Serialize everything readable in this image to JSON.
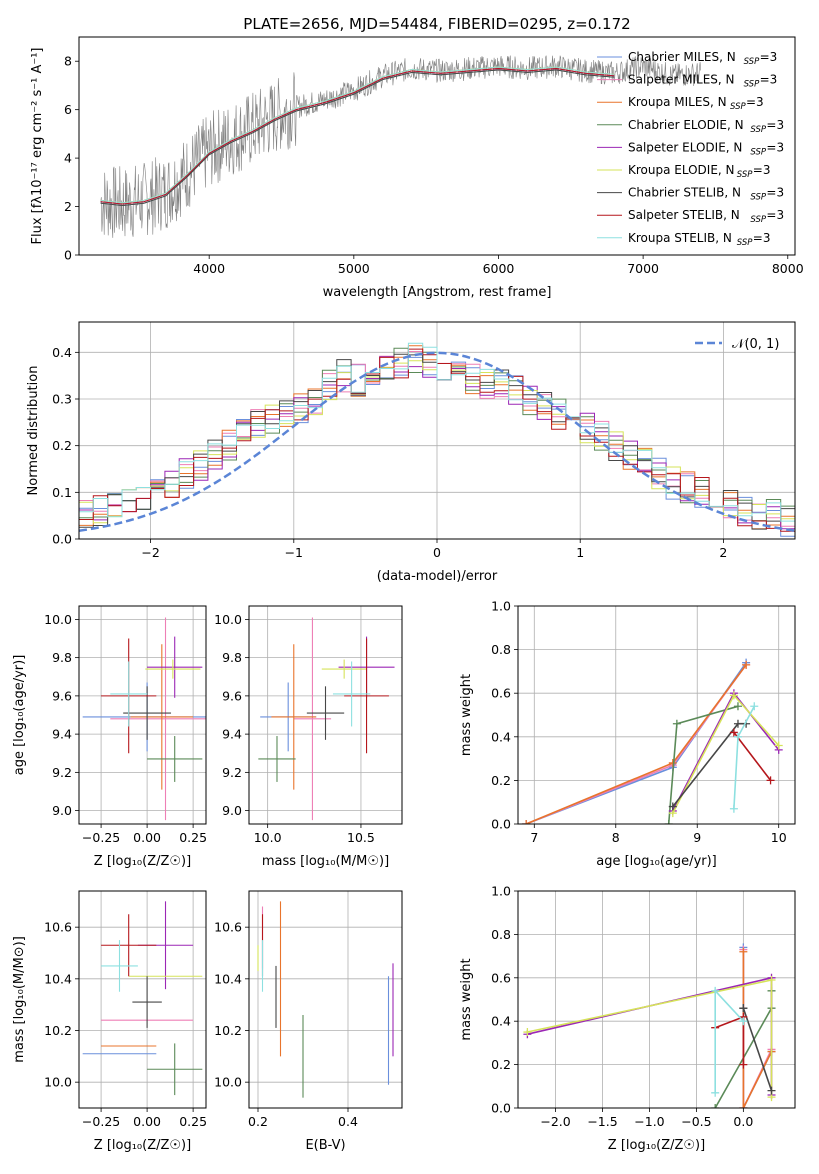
{
  "colors": {
    "Chabrier MILES": "#6a8fdc",
    "Salpeter MILES": "#ee7fb5",
    "Kroupa MILES": "#e8742c",
    "Chabrier ELODIE": "#5b8a58",
    "Salpeter ELODIE": "#9b27b5",
    "Kroupa ELODIE": "#d6e35a",
    "Chabrier STELIB": "#474747",
    "Salpeter STELIB": "#b5171c",
    "Kroupa STELIB": "#8de0e0",
    "data": "#7f7f7f",
    "normal": "#5b85d6"
  },
  "chart_data": [
    {
      "id": "spectrum",
      "type": "line",
      "title": "PLATE=2656, MJD=54484, FIBERID=0295, z=0.172",
      "xlabel": "wavelength [Angstrom, rest frame]",
      "ylabel": "Flux [f_λ 10^-17 erg cm^-2 s^-1 A^-1]",
      "xlim": [
        3100,
        8050
      ],
      "ylim": [
        0,
        9
      ],
      "xticks": [
        4000,
        5000,
        6000,
        7000,
        8000
      ],
      "yticks": [
        0,
        2,
        4,
        6,
        8
      ],
      "legend_position": "top-right",
      "legend": [
        "Chabrier MILES, N_SSP=3",
        "Salpeter MILES, N_SSP=3",
        "Kroupa MILES, N_SSP=3",
        "Chabrier ELODIE, N_SSP=3",
        "Salpeter ELODIE, N_SSP=3",
        "Kroupa ELODIE, N_SSP=3",
        "Chabrier STELIB, N_SSP=3",
        "Salpeter STELIB, N_SSP=3",
        "Kroupa STELIB, N_SSP=3"
      ],
      "data_envelope": {
        "x": [
          3250,
          3400,
          3550,
          3700,
          3850,
          4000,
          4150,
          4300,
          4450,
          4600,
          4800,
          5000,
          5200,
          5400,
          5600,
          5800,
          6000,
          6200,
          6400,
          6600,
          6800,
          7000,
          7200,
          7400
        ],
        "y": [
          2.2,
          2.1,
          2.3,
          2.6,
          3.4,
          4.3,
          4.8,
          5.2,
          5.7,
          6.1,
          6.4,
          6.8,
          7.4,
          7.7,
          7.6,
          7.7,
          7.8,
          7.7,
          7.8,
          7.6,
          7.5,
          7.8,
          7.4,
          7.5
        ]
      },
      "model_envelope": {
        "x": [
          3250,
          3400,
          3550,
          3700,
          3850,
          4000,
          4150,
          4300,
          4450,
          4600,
          4800,
          5000,
          5200,
          5400,
          5600,
          5800,
          6000,
          6200,
          6400,
          6600,
          6800
        ],
        "y": [
          2.2,
          2.1,
          2.2,
          2.5,
          3.3,
          4.2,
          4.7,
          5.1,
          5.6,
          6.0,
          6.3,
          6.7,
          7.3,
          7.6,
          7.5,
          7.6,
          7.7,
          7.6,
          7.7,
          7.5,
          7.4
        ]
      }
    },
    {
      "id": "residuals",
      "type": "histogram",
      "xlabel": "(data-model)/error",
      "ylabel": "Normed distribution",
      "xlim": [
        -2.5,
        2.5
      ],
      "ylim": [
        0,
        0.465
      ],
      "xticks": [
        -2,
        -1,
        0,
        1,
        2
      ],
      "yticks": [
        0.0,
        0.1,
        0.2,
        0.3,
        0.4
      ],
      "legend": [
        "𝒩(0, 1)"
      ],
      "legend_position": "top-right",
      "bin_width": 0.1,
      "bins": {
        "x": [
          -2.5,
          -2.4,
          -2.3,
          -2.2,
          -2.1,
          -2.0,
          -1.9,
          -1.8,
          -1.7,
          -1.6,
          -1.5,
          -1.4,
          -1.3,
          -1.2,
          -1.1,
          -1.0,
          -0.9,
          -0.8,
          -0.7,
          -0.6,
          -0.5,
          -0.4,
          -0.3,
          -0.2,
          -0.1,
          0.0,
          0.1,
          0.2,
          0.3,
          0.4,
          0.5,
          0.6,
          0.7,
          0.8,
          0.9,
          1.0,
          1.1,
          1.2,
          1.3,
          1.4,
          1.5,
          1.6,
          1.7,
          1.8,
          1.9,
          2.0,
          2.1,
          2.2,
          2.3,
          2.4
        ],
        "y": [
          0.05,
          0.06,
          0.07,
          0.08,
          0.09,
          0.1,
          0.12,
          0.14,
          0.16,
          0.18,
          0.2,
          0.23,
          0.25,
          0.26,
          0.27,
          0.28,
          0.3,
          0.33,
          0.35,
          0.34,
          0.36,
          0.37,
          0.38,
          0.39,
          0.38,
          0.37,
          0.35,
          0.34,
          0.33,
          0.33,
          0.32,
          0.3,
          0.28,
          0.27,
          0.25,
          0.24,
          0.22,
          0.2,
          0.18,
          0.16,
          0.14,
          0.12,
          0.11,
          0.1,
          0.08,
          0.07,
          0.06,
          0.05,
          0.05,
          0.04
        ]
      }
    },
    {
      "id": "age-vs-Z",
      "type": "errorbar",
      "xlabel": "Z [log10(Z/Z_⊙)]",
      "ylabel": "age  [log10(age/yr)]",
      "xlim": [
        -0.37,
        0.32
      ],
      "ylim": [
        8.93,
        10.07
      ],
      "xticks": [
        -0.25,
        0.0,
        0.25
      ],
      "xticklabels": [
        "−0.25",
        "0.00",
        "0.25"
      ],
      "yticks": [
        9.0,
        9.2,
        9.4,
        9.6,
        9.8,
        10.0
      ],
      "points": [
        {
          "model": "Chabrier MILES",
          "x": 0.0,
          "xerr": 0.35,
          "y": 9.49,
          "yerr": 0.18
        },
        {
          "model": "Salpeter MILES",
          "x": 0.1,
          "xerr": 0.3,
          "y": 9.48,
          "yerr": 0.53
        },
        {
          "model": "Kroupa MILES",
          "x": 0.08,
          "xerr": 0.17,
          "y": 9.49,
          "yerr": 0.38
        },
        {
          "model": "Chabrier ELODIE",
          "x": 0.15,
          "xerr": 0.15,
          "y": 9.27,
          "yerr": 0.12
        },
        {
          "model": "Salpeter ELODIE",
          "x": 0.15,
          "xerr": 0.15,
          "y": 9.75,
          "yerr": 0.16
        },
        {
          "model": "Kroupa ELODIE",
          "x": 0.14,
          "xerr": 0.15,
          "y": 9.74,
          "yerr": 0.05
        },
        {
          "model": "Chabrier STELIB",
          "x": 0.0,
          "xerr": 0.13,
          "y": 9.51,
          "yerr": 0.14
        },
        {
          "model": "Salpeter STELIB",
          "x": -0.1,
          "xerr": 0.15,
          "y": 9.6,
          "yerr": 0.3
        },
        {
          "model": "Kroupa STELIB",
          "x": -0.1,
          "xerr": 0.1,
          "y": 9.61,
          "yerr": 0.17
        }
      ]
    },
    {
      "id": "age-vs-mass",
      "type": "errorbar",
      "xlabel": "mass [log10(M/M_⊙)]",
      "ylabel": "",
      "xlim": [
        9.9,
        10.72
      ],
      "ylim": [
        8.93,
        10.07
      ],
      "xticks": [
        10.0,
        10.5
      ],
      "xticklabels": [
        "10.0",
        "10.5"
      ],
      "yticks": [
        9.0,
        9.2,
        9.4,
        9.6,
        9.8,
        10.0
      ],
      "points": [
        {
          "model": "Chabrier MILES",
          "x": 10.11,
          "xerr": 0.15,
          "y": 9.49,
          "yerr": 0.18
        },
        {
          "model": "Salpeter MILES",
          "x": 10.24,
          "xerr": 0.1,
          "y": 9.48,
          "yerr": 0.53
        },
        {
          "model": "Kroupa MILES",
          "x": 10.14,
          "xerr": 0.12,
          "y": 9.49,
          "yerr": 0.38
        },
        {
          "model": "Chabrier ELODIE",
          "x": 10.05,
          "xerr": 0.1,
          "y": 9.27,
          "yerr": 0.12
        },
        {
          "model": "Salpeter ELODIE",
          "x": 10.53,
          "xerr": 0.15,
          "y": 9.75,
          "yerr": 0.16
        },
        {
          "model": "Kroupa ELODIE",
          "x": 10.41,
          "xerr": 0.12,
          "y": 9.74,
          "yerr": 0.05
        },
        {
          "model": "Chabrier STELIB",
          "x": 10.31,
          "xerr": 0.1,
          "y": 9.51,
          "yerr": 0.14
        },
        {
          "model": "Salpeter STELIB",
          "x": 10.53,
          "xerr": 0.12,
          "y": 9.6,
          "yerr": 0.3
        },
        {
          "model": "Kroupa STELIB",
          "x": 10.45,
          "xerr": 0.1,
          "y": 9.61,
          "yerr": 0.17
        }
      ]
    },
    {
      "id": "mass-weight-vs-age",
      "type": "line",
      "xlabel": "age  [log10(age/yr)]",
      "ylabel": "mass weight",
      "xlim": [
        6.8,
        10.2
      ],
      "ylim": [
        0,
        1
      ],
      "xticks": [
        7,
        8,
        9,
        10
      ],
      "yticks": [
        0.0,
        0.2,
        0.4,
        0.6,
        0.8,
        1.0
      ],
      "series": [
        {
          "model": "Chabrier MILES",
          "x": [
            6.9,
            8.7,
            9.6
          ],
          "y": [
            0.0,
            0.26,
            0.74
          ]
        },
        {
          "model": "Salpeter MILES",
          "x": [
            6.9,
            8.7,
            9.6
          ],
          "y": [
            0.0,
            0.27,
            0.73
          ]
        },
        {
          "model": "Kroupa MILES",
          "x": [
            6.9,
            8.7,
            9.6
          ],
          "y": [
            0.0,
            0.28,
            0.73
          ]
        },
        {
          "model": "Chabrier ELODIE",
          "x": [
            8.65,
            8.75,
            9.5
          ],
          "y": [
            0.0,
            0.46,
            0.54
          ]
        },
        {
          "model": "Salpeter ELODIE",
          "x": [
            8.7,
            9.45,
            10.0
          ],
          "y": [
            0.06,
            0.6,
            0.34
          ]
        },
        {
          "model": "Kroupa ELODIE",
          "x": [
            8.7,
            9.45,
            10.0
          ],
          "y": [
            0.05,
            0.59,
            0.36
          ]
        },
        {
          "model": "Chabrier STELIB",
          "x": [
            8.7,
            9.5,
            9.6
          ],
          "y": [
            0.08,
            0.46,
            0.46
          ]
        },
        {
          "model": "Salpeter STELIB",
          "x": [
            9.45,
            9.9
          ],
          "y": [
            0.42,
            0.2
          ]
        },
        {
          "model": "Kroupa STELIB",
          "x": [
            9.45,
            9.5,
            9.7
          ],
          "y": [
            0.07,
            0.4,
            0.54
          ]
        }
      ]
    },
    {
      "id": "mass-vs-Z",
      "type": "errorbar",
      "xlabel": "Z [log10(Z/Z_⊙)]",
      "ylabel": "mass [log10(M/M_⊙)]",
      "xlim": [
        -0.37,
        0.32
      ],
      "ylim": [
        9.9,
        10.74
      ],
      "xticks": [
        -0.25,
        0.0,
        0.25
      ],
      "xticklabels": [
        "−0.25",
        "0.00",
        "0.25"
      ],
      "yticks": [
        10.0,
        10.2,
        10.4,
        10.6
      ],
      "points": [
        {
          "model": "Chabrier MILES",
          "x": -0.15,
          "xerr": 0.2,
          "y": 10.11,
          "yerr": 0.0
        },
        {
          "model": "Salpeter MILES",
          "x": 0.0,
          "xerr": 0.25,
          "y": 10.24,
          "yerr": 0.0
        },
        {
          "model": "Kroupa MILES",
          "x": -0.1,
          "xerr": 0.15,
          "y": 10.14,
          "yerr": 0.0
        },
        {
          "model": "Chabrier ELODIE",
          "x": 0.15,
          "xerr": 0.15,
          "y": 10.05,
          "yerr": 0.1
        },
        {
          "model": "Salpeter ELODIE",
          "x": 0.1,
          "xerr": 0.15,
          "y": 10.53,
          "yerr": 0.17
        },
        {
          "model": "Kroupa ELODIE",
          "x": 0.1,
          "xerr": 0.2,
          "y": 10.41,
          "yerr": 0.0
        },
        {
          "model": "Chabrier STELIB",
          "x": 0.0,
          "xerr": 0.08,
          "y": 10.31,
          "yerr": 0.1
        },
        {
          "model": "Salpeter STELIB",
          "x": -0.1,
          "xerr": 0.15,
          "y": 10.53,
          "yerr": 0.12
        },
        {
          "model": "Kroupa STELIB",
          "x": -0.15,
          "xerr": 0.1,
          "y": 10.45,
          "yerr": 0.1
        }
      ]
    },
    {
      "id": "mass-vs-ebv",
      "type": "errorbar",
      "xlabel": "E(B-V)",
      "ylabel": "",
      "xlim": [
        0.18,
        0.52
      ],
      "ylim": [
        9.9,
        10.74
      ],
      "xticks": [
        0.2,
        0.4
      ],
      "xticklabels": [
        "0.2",
        "0.4"
      ],
      "yticks": [
        10.0,
        10.2,
        10.4,
        10.6
      ],
      "points": [
        {
          "model": "Chabrier MILES",
          "x": 0.49,
          "xerr": 0,
          "y": 10.2,
          "yerr": 0.21
        },
        {
          "model": "Salpeter MILES",
          "x": 0.21,
          "xerr": 0,
          "y": 10.56,
          "yerr": 0.12
        },
        {
          "model": "Kroupa MILES",
          "x": 0.25,
          "xerr": 0,
          "y": 10.4,
          "yerr": 0.3
        },
        {
          "model": "Chabrier ELODIE",
          "x": 0.3,
          "xerr": 0,
          "y": 10.1,
          "yerr": 0.16
        },
        {
          "model": "Salpeter ELODIE",
          "x": 0.5,
          "xerr": 0,
          "y": 10.28,
          "yerr": 0.18
        },
        {
          "model": "Kroupa ELODIE",
          "x": 0.2,
          "xerr": 0,
          "y": 10.48,
          "yerr": 0.05
        },
        {
          "model": "Chabrier STELIB",
          "x": 0.24,
          "xerr": 0,
          "y": 10.33,
          "yerr": 0.12
        },
        {
          "model": "Salpeter STELIB",
          "x": 0.21,
          "xerr": 0,
          "y": 10.53,
          "yerr": 0.12
        },
        {
          "model": "Kroupa STELIB",
          "x": 0.21,
          "xerr": 0,
          "y": 10.45,
          "yerr": 0.1
        }
      ]
    },
    {
      "id": "mass-weight-vs-Z",
      "type": "line",
      "xlabel": "Z [log10(Z/Z_⊙)]",
      "ylabel": "mass weight",
      "xlim": [
        -2.4,
        0.55
      ],
      "ylim": [
        0,
        1
      ],
      "xticks": [
        -2.0,
        -1.5,
        -1.0,
        -0.5,
        0.0
      ],
      "xticklabels": [
        "−2.0",
        "−1.5",
        "−1.0",
        "−0.5",
        "0.0"
      ],
      "yticks": [
        0.0,
        0.2,
        0.4,
        0.6,
        0.8,
        1.0
      ],
      "series": [
        {
          "model": "Chabrier MILES",
          "x": [
            0.0,
            0.0,
            0.3
          ],
          "y": [
            0.74,
            0.0,
            0.26
          ]
        },
        {
          "model": "Salpeter MILES",
          "x": [
            0.0,
            0.0,
            0.3
          ],
          "y": [
            0.73,
            0.0,
            0.27
          ]
        },
        {
          "model": "Kroupa MILES",
          "x": [
            0.0,
            0.0,
            0.3
          ],
          "y": [
            0.72,
            0.0,
            0.26
          ]
        },
        {
          "model": "Chabrier ELODIE",
          "x": [
            -0.3,
            0.3,
            0.3
          ],
          "y": [
            0.0,
            0.46,
            0.54
          ]
        },
        {
          "model": "Salpeter ELODIE",
          "x": [
            -2.3,
            0.3,
            0.3
          ],
          "y": [
            0.34,
            0.6,
            0.06
          ]
        },
        {
          "model": "Kroupa ELODIE",
          "x": [
            -2.3,
            0.3,
            0.3
          ],
          "y": [
            0.35,
            0.59,
            0.05
          ]
        },
        {
          "model": "Chabrier STELIB",
          "x": [
            0.0,
            0.0,
            0.3
          ],
          "y": [
            0.46,
            0.46,
            0.08
          ]
        },
        {
          "model": "Salpeter STELIB",
          "x": [
            -0.3,
            0.0,
            0.0
          ],
          "y": [
            0.37,
            0.42,
            0.2
          ]
        },
        {
          "model": "Kroupa STELIB",
          "x": [
            -0.3,
            -0.3,
            0.0
          ],
          "y": [
            0.07,
            0.54,
            0.4
          ]
        }
      ]
    }
  ]
}
